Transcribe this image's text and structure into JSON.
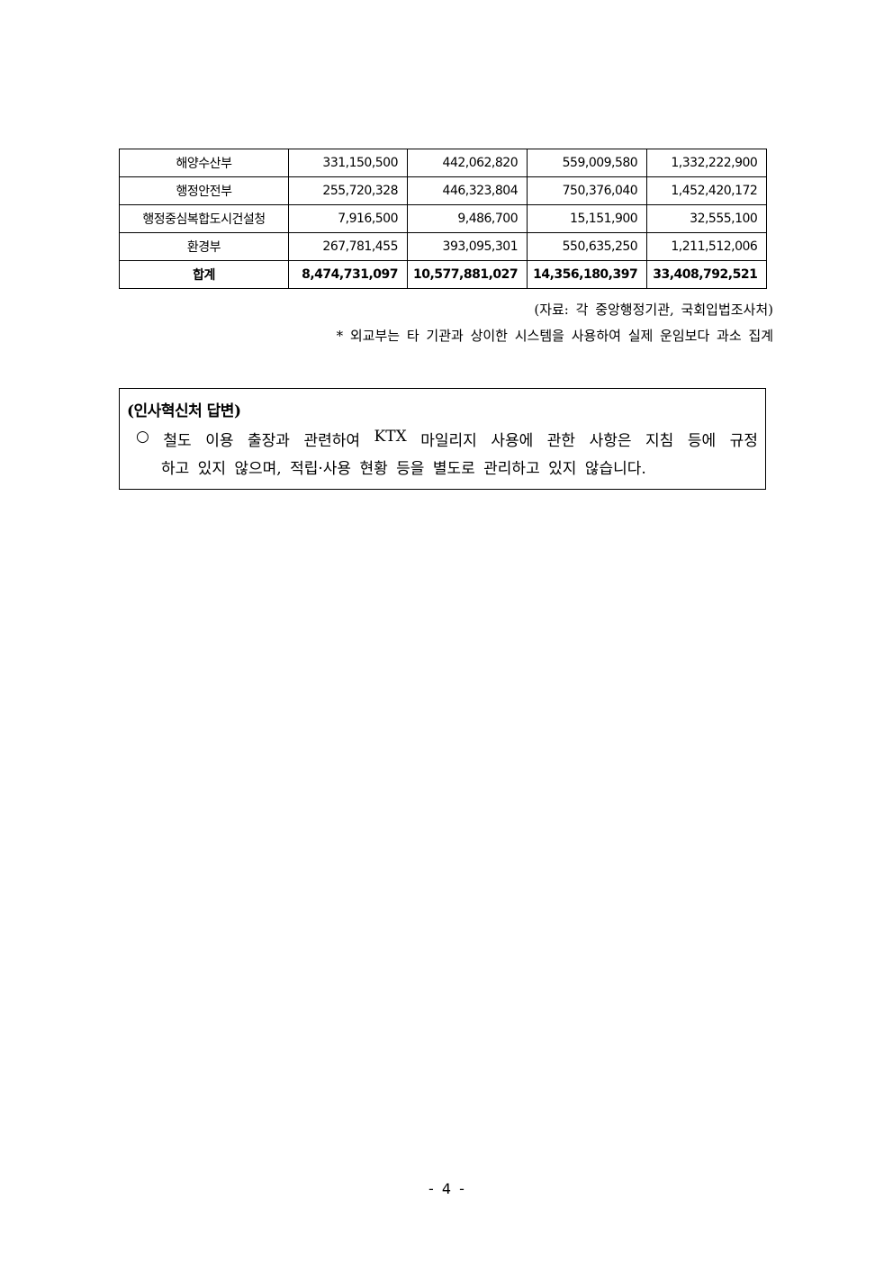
{
  "table": {
    "rows": [
      {
        "name": "해양수산부",
        "v1": "331,150,500",
        "v2": "442,062,820",
        "v3": "559,009,580",
        "v4": "1,332,222,900"
      },
      {
        "name": "행정안전부",
        "v1": "255,720,328",
        "v2": "446,323,804",
        "v3": "750,376,040",
        "v4": "1,452,420,172"
      },
      {
        "name": "행정중심복합도시건설청",
        "v1": "7,916,500",
        "v2": "9,486,700",
        "v3": "15,151,900",
        "v4": "32,555,100"
      },
      {
        "name": "환경부",
        "v1": "267,781,455",
        "v2": "393,095,301",
        "v3": "550,635,250",
        "v4": "1,211,512,006"
      },
      {
        "name": "합계",
        "v1": "8,474,731,097",
        "v2": "10,577,881,027",
        "v3": "14,356,180,397",
        "v4": "33,408,792,521"
      }
    ]
  },
  "source": "(자료: 각 중앙행정기관, 국회입법조사처)",
  "footnote": "* 외교부는 타 기관과 상이한 시스템을 사용하여 실제 운임보다 과소 집계",
  "answer": {
    "title": "(인사혁신처 답변)",
    "bullet": "○",
    "line1": "철도 이용 출장과 관련하여 KTX 마일리지 사용에 관한 사항은 지침 등에 규정",
    "line2": "하고 있지 않으며, 적립·사용 현황 등을 별도로 관리하고 있지 않습니다."
  },
  "page_number": "- 4 -"
}
